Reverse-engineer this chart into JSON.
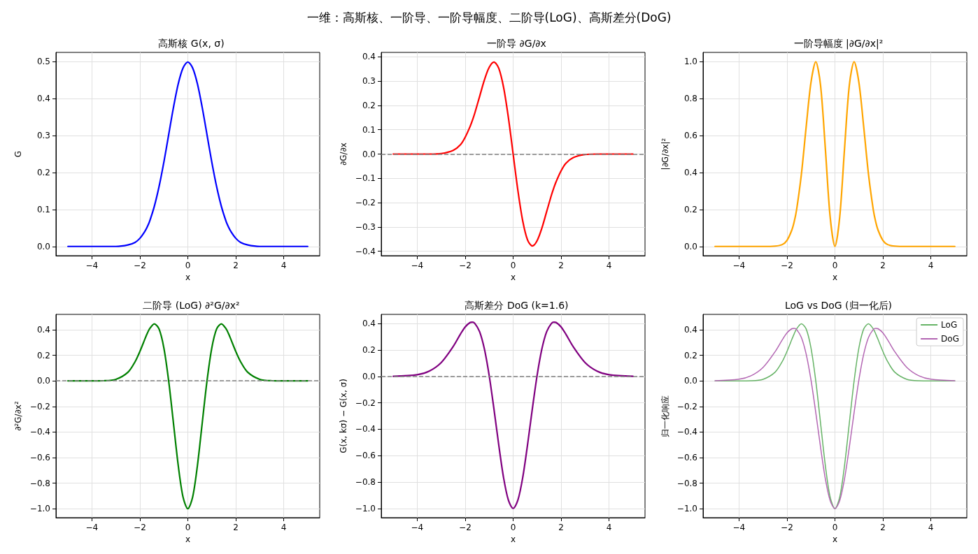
{
  "chart_data": [
    {
      "type": "line",
      "title": "高斯核 G(x, σ)",
      "xlabel": "x",
      "ylabel": "G",
      "annotations": [
        "一维：高斯核、一阶导、一阶导幅度、二阶导(LoG)、高斯差分(DoG)"
      ],
      "grid": true,
      "legend": false,
      "x": [
        -5,
        -4,
        -3.5,
        -3,
        -2.5,
        -2.2,
        -2,
        -1.8,
        -1.7,
        -1.6,
        -1.4,
        -1.2,
        -1,
        -0.8,
        -0.6,
        -0.4,
        -0.2,
        0,
        0.2,
        0.4,
        0.6,
        0.8,
        1,
        1.2,
        1.4,
        1.6,
        1.7,
        1.8,
        2,
        2.2,
        2.5,
        3,
        3.5,
        4,
        5
      ],
      "xlim": [
        -5.5,
        5.5
      ],
      "xticks": [
        -4,
        -2,
        0,
        2,
        4
      ],
      "ylim": [
        -0.025,
        0.525
      ],
      "yticks": [
        {
          "value": 0,
          "label": "0.0"
        },
        0.1,
        0.2,
        0.3,
        0.4,
        0.5
      ],
      "series": [
        {
          "color": "#0000ff",
          "values": [
            0,
            0,
            0,
            0,
            0.004,
            0.011,
            0.022,
            0.04,
            0.052,
            0.067,
            0.108,
            0.162,
            0.228,
            0.302,
            0.376,
            0.44,
            0.483,
            0.499,
            0.483,
            0.44,
            0.376,
            0.302,
            0.228,
            0.162,
            0.108,
            0.067,
            0.052,
            0.04,
            0.022,
            0.011,
            0.004,
            0,
            0,
            0,
            0
          ]
        }
      ]
    },
    {
      "type": "line",
      "title": "一阶导 ∂G/∂x",
      "xlabel": "x",
      "ylabel": "∂G/∂x",
      "grid": true,
      "legend": false,
      "x": [
        -5,
        -4,
        -3.5,
        -3,
        -2.5,
        -2.2,
        -2,
        -1.8,
        -1.7,
        -1.6,
        -1.4,
        -1.2,
        -1,
        -0.8,
        -0.6,
        -0.4,
        -0.2,
        0,
        0.2,
        0.4,
        0.6,
        0.8,
        1,
        1.2,
        1.4,
        1.6,
        1.7,
        1.8,
        2,
        2.2,
        2.5,
        3,
        3.5,
        4,
        5
      ],
      "xlim": [
        -5.5,
        5.5
      ],
      "xticks": [
        -4,
        -2,
        0,
        2,
        4
      ],
      "ylim": [
        -0.418,
        0.418
      ],
      "yticks": [
        {
          "value": -0.4,
          "label": "−0.4"
        },
        {
          "value": -0.3,
          "label": "−0.3"
        },
        {
          "value": -0.2,
          "label": "−0.2"
        },
        {
          "value": -0.1,
          "label": "−0.1"
        },
        {
          "value": 0,
          "label": "0.0"
        },
        0.1,
        0.2,
        0.3,
        0.4
      ],
      "ref_lines": [
        {
          "axis": "y",
          "value": 0,
          "color": "#808080",
          "line_style": "dashed"
        }
      ],
      "series": [
        {
          "color": "#ff0000",
          "values": [
            0,
            0,
            0,
            0.002,
            0.015,
            0.038,
            0.069,
            0.112,
            0.138,
            0.168,
            0.236,
            0.304,
            0.356,
            0.378,
            0.353,
            0.275,
            0.151,
            0,
            -0.151,
            -0.275,
            -0.353,
            -0.378,
            -0.356,
            -0.304,
            -0.236,
            -0.168,
            -0.138,
            -0.112,
            -0.069,
            -0.038,
            -0.015,
            -0.002,
            0,
            0,
            0
          ]
        }
      ]
    },
    {
      "type": "line",
      "title": "一阶导幅度 |∂G/∂x|²",
      "xlabel": "x",
      "ylabel": "|∂G/∂x|²",
      "grid": true,
      "legend": false,
      "x": [
        -5,
        -4,
        -3.5,
        -3,
        -2.5,
        -2.2,
        -2,
        -1.8,
        -1.7,
        -1.6,
        -1.4,
        -1.2,
        -1,
        -0.8,
        -0.6,
        -0.4,
        -0.2,
        0,
        0.2,
        0.4,
        0.6,
        0.8,
        1,
        1.2,
        1.4,
        1.6,
        1.7,
        1.8,
        2,
        2.2,
        2.5,
        3,
        3.5,
        4,
        5
      ],
      "xlim": [
        -5.5,
        5.5
      ],
      "xticks": [
        -4,
        -2,
        0,
        2,
        4
      ],
      "ylim": [
        -0.05,
        1.05
      ],
      "yticks": [
        {
          "value": 0,
          "label": "0.0"
        },
        0.2,
        0.4,
        0.6,
        0.8,
        {
          "value": 1,
          "label": "1.0"
        }
      ],
      "series": [
        {
          "color": "#ffa500",
          "values": [
            0,
            0,
            0,
            0,
            0.002,
            0.01,
            0.033,
            0.088,
            0.133,
            0.198,
            0.39,
            0.647,
            0.887,
            1.0,
            0.872,
            0.529,
            0.16,
            0,
            0.16,
            0.529,
            0.872,
            1.0,
            0.887,
            0.647,
            0.39,
            0.198,
            0.133,
            0.088,
            0.033,
            0.01,
            0.002,
            0,
            0,
            0,
            0
          ]
        }
      ]
    },
    {
      "type": "line",
      "title": "二阶导 (LoG) ∂²G/∂x²",
      "xlabel": "x",
      "ylabel": "∂²G/∂x²",
      "grid": true,
      "legend": false,
      "x": [
        -5,
        -4,
        -3.5,
        -3,
        -2.5,
        -2.2,
        -2,
        -1.8,
        -1.7,
        -1.6,
        -1.4,
        -1.2,
        -1,
        -0.8,
        -0.6,
        -0.4,
        -0.2,
        0,
        0.2,
        0.4,
        0.6,
        0.8,
        1,
        1.2,
        1.4,
        1.6,
        1.7,
        1.8,
        2,
        2.2,
        2.5,
        3,
        3.5,
        4,
        5
      ],
      "xlim": [
        -5.5,
        5.5
      ],
      "xticks": [
        -4,
        -2,
        0,
        2,
        4
      ],
      "ylim": [
        -1.07,
        0.52
      ],
      "yticks": [
        {
          "value": -1,
          "label": "−1.0"
        },
        {
          "value": -0.8,
          "label": "−0.8"
        },
        {
          "value": -0.6,
          "label": "−0.6"
        },
        {
          "value": -0.4,
          "label": "−0.4"
        },
        {
          "value": -0.2,
          "label": "−0.2"
        },
        {
          "value": 0,
          "label": "0.0"
        },
        0.2,
        0.4
      ],
      "ref_lines": [
        {
          "axis": "y",
          "value": 0,
          "color": "#808080",
          "line_style": "dashed"
        }
      ],
      "series": [
        {
          "color": "#008000",
          "values": [
            0,
            0,
            0.001,
            0.012,
            0.067,
            0.15,
            0.23,
            0.323,
            0.368,
            0.406,
            0.446,
            0.406,
            0.258,
            0,
            -0.33,
            -0.662,
            -0.909,
            -1,
            -0.909,
            -0.662,
            -0.33,
            0,
            0.258,
            0.406,
            0.446,
            0.406,
            0.368,
            0.323,
            0.23,
            0.15,
            0.067,
            0.012,
            0.001,
            0,
            0
          ]
        }
      ]
    },
    {
      "type": "line",
      "title": "高斯差分 DoG (k=1.6)",
      "xlabel": "x",
      "ylabel": "G(x, kσ) − G(x, σ)",
      "grid": true,
      "legend": false,
      "x": [
        -5,
        -4,
        -3.5,
        -3,
        -2.5,
        -2.2,
        -2,
        -1.8,
        -1.7,
        -1.6,
        -1.4,
        -1.2,
        -1,
        -0.8,
        -0.6,
        -0.4,
        -0.2,
        0,
        0.2,
        0.4,
        0.6,
        0.8,
        1,
        1.2,
        1.4,
        1.6,
        1.7,
        1.8,
        2,
        2.2,
        2.5,
        3,
        3.5,
        4,
        5
      ],
      "xlim": [
        -5.5,
        5.5
      ],
      "xticks": [
        -4,
        -2,
        0,
        2,
        4
      ],
      "ylim": [
        -1.07,
        0.47
      ],
      "yticks": [
        {
          "value": -1,
          "label": "−1.0"
        },
        {
          "value": -0.8,
          "label": "−0.8"
        },
        {
          "value": -0.6,
          "label": "−0.6"
        },
        {
          "value": -0.4,
          "label": "−0.4"
        },
        {
          "value": -0.2,
          "label": "−0.2"
        },
        {
          "value": 0,
          "label": "0.0"
        },
        0.2,
        0.4
      ],
      "ref_lines": [
        {
          "axis": "y",
          "value": 0,
          "color": "#808080",
          "line_style": "dashed"
        }
      ],
      "series": [
        {
          "color": "#800080",
          "values": [
            0.001,
            0.013,
            0.04,
            0.105,
            0.227,
            0.32,
            0.375,
            0.408,
            0.411,
            0.402,
            0.34,
            0.209,
            0.008,
            -0.247,
            -0.519,
            -0.766,
            -0.936,
            -1,
            -0.936,
            -0.766,
            -0.519,
            -0.247,
            0.008,
            0.209,
            0.34,
            0.402,
            0.411,
            0.408,
            0.375,
            0.32,
            0.227,
            0.105,
            0.04,
            0.013,
            0.001
          ]
        }
      ]
    },
    {
      "type": "line",
      "title": "LoG vs DoG (归一化后)",
      "xlabel": "x",
      "ylabel": "归一化响应",
      "grid": true,
      "legend": "top right",
      "x": [
        -5,
        -4,
        -3.5,
        -3,
        -2.5,
        -2.2,
        -2,
        -1.8,
        -1.7,
        -1.6,
        -1.4,
        -1.2,
        -1,
        -0.8,
        -0.6,
        -0.4,
        -0.2,
        0,
        0.2,
        0.4,
        0.6,
        0.8,
        1,
        1.2,
        1.4,
        1.6,
        1.7,
        1.8,
        2,
        2.2,
        2.5,
        3,
        3.5,
        4,
        5
      ],
      "xlim": [
        -5.5,
        5.5
      ],
      "xticks": [
        -4,
        -2,
        0,
        2,
        4
      ],
      "ylim": [
        -1.07,
        0.52
      ],
      "yticks": [
        {
          "value": -1,
          "label": "−1.0"
        },
        {
          "value": -0.8,
          "label": "−0.8"
        },
        {
          "value": -0.6,
          "label": "−0.6"
        },
        {
          "value": -0.4,
          "label": "−0.4"
        },
        {
          "value": -0.2,
          "label": "−0.2"
        },
        {
          "value": 0,
          "label": "0.0"
        },
        0.2,
        0.4
      ],
      "series": [
        {
          "name": "LoG",
          "color": "#66b366",
          "values": [
            0,
            0,
            0.001,
            0.012,
            0.067,
            0.15,
            0.23,
            0.323,
            0.368,
            0.406,
            0.446,
            0.406,
            0.258,
            0,
            -0.33,
            -0.662,
            -0.909,
            -1,
            -0.909,
            -0.662,
            -0.33,
            0,
            0.258,
            0.406,
            0.446,
            0.406,
            0.368,
            0.323,
            0.23,
            0.15,
            0.067,
            0.012,
            0.001,
            0,
            0
          ]
        },
        {
          "name": "DoG",
          "color": "#b366b3",
          "values": [
            0.001,
            0.013,
            0.04,
            0.105,
            0.227,
            0.32,
            0.375,
            0.408,
            0.411,
            0.402,
            0.34,
            0.209,
            0.008,
            -0.247,
            -0.519,
            -0.766,
            -0.936,
            -1,
            -0.936,
            -0.766,
            -0.519,
            -0.247,
            0.008,
            0.209,
            0.34,
            0.402,
            0.411,
            0.408,
            0.375,
            0.32,
            0.227,
            0.105,
            0.04,
            0.013,
            0.001
          ]
        }
      ]
    }
  ]
}
